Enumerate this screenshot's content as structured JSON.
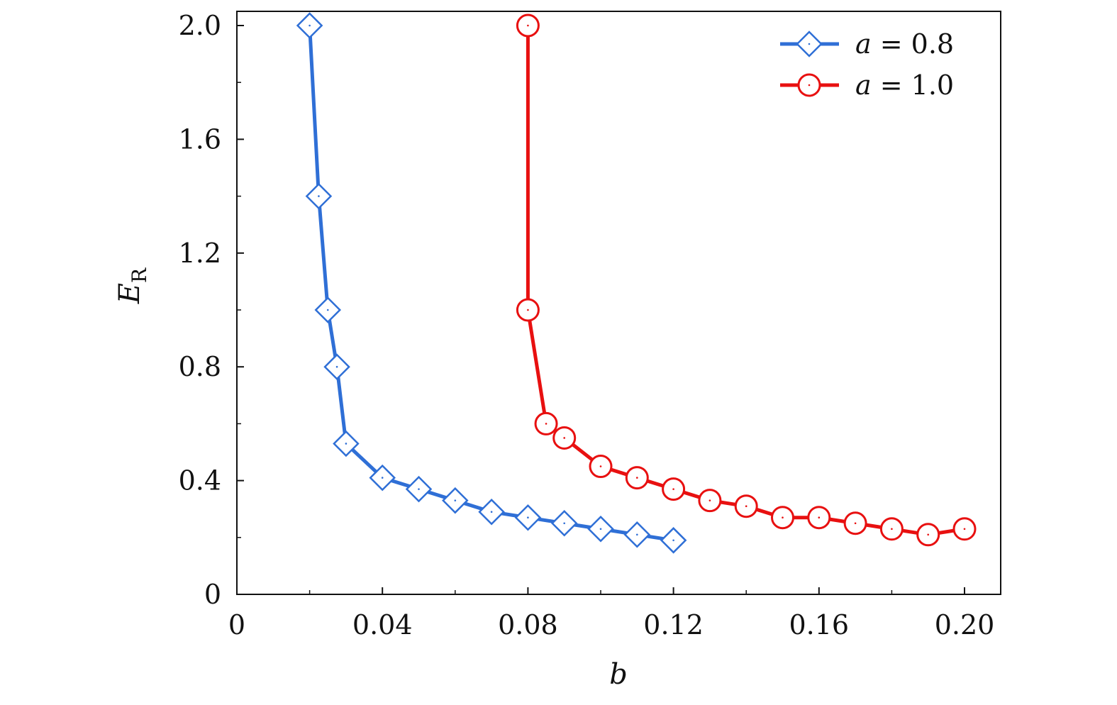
{
  "chart_data": {
    "type": "line",
    "xlabel": "b",
    "ylabel_main": "E",
    "ylabel_sub": "R",
    "xlim": [
      0,
      0.21
    ],
    "ylim": [
      0,
      2.05
    ],
    "xticks": [
      0,
      0.04,
      0.08,
      0.12,
      0.16,
      0.2
    ],
    "xtick_labels": [
      "0",
      "0.04",
      "0.08",
      "0.12",
      "0.16",
      "0.20"
    ],
    "yticks": [
      0,
      0.4,
      0.8,
      1.2,
      1.6,
      2.0
    ],
    "ytick_labels": [
      "0",
      "0.4",
      "0.8",
      "1.2",
      "1.6",
      "2.0"
    ],
    "grid": false,
    "legend_position": "top-right",
    "series": [
      {
        "name_var": "a",
        "name_rest": " = 0.8",
        "color": "#2f6fd6",
        "marker": "diamond",
        "x": [
          0.02,
          0.0225,
          0.025,
          0.0275,
          0.03,
          0.04,
          0.05,
          0.06,
          0.07,
          0.08,
          0.09,
          0.1,
          0.11,
          0.12
        ],
        "y": [
          2.0,
          1.4,
          1.0,
          0.8,
          0.53,
          0.41,
          0.37,
          0.33,
          0.29,
          0.27,
          0.25,
          0.23,
          0.21,
          0.19
        ]
      },
      {
        "name_var": "a",
        "name_rest": " = 1.0",
        "color": "#e81010",
        "marker": "circle",
        "x": [
          0.08,
          0.08,
          0.085,
          0.09,
          0.1,
          0.11,
          0.12,
          0.13,
          0.14,
          0.15,
          0.16,
          0.17,
          0.18,
          0.19,
          0.2
        ],
        "y": [
          2.0,
          1.0,
          0.6,
          0.55,
          0.45,
          0.41,
          0.37,
          0.33,
          0.31,
          0.27,
          0.27,
          0.25,
          0.23,
          0.21,
          0.23
        ]
      }
    ]
  }
}
